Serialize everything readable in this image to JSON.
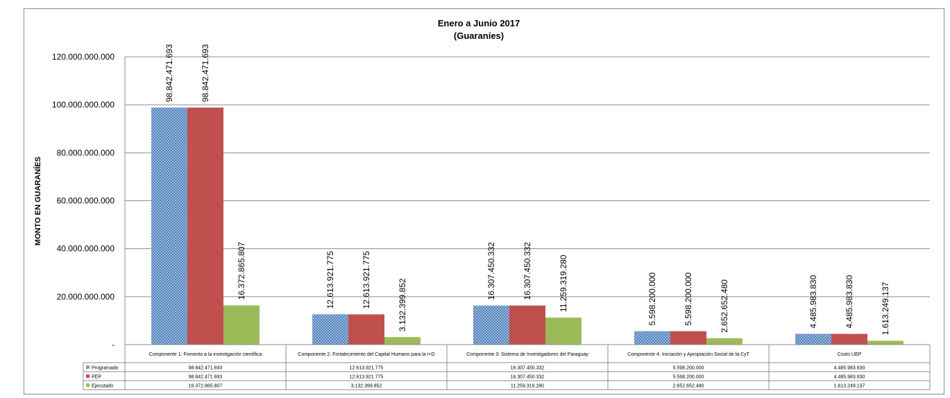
{
  "chart_data": {
    "type": "bar",
    "title": "Enero a Junio 2017",
    "subtitle": "(Guaraníes)",
    "ylabel": "MONTO EN GUARANÍES",
    "xlabel": "",
    "ylim": [
      0,
      120000000000
    ],
    "yticks": [
      0,
      20000000000,
      40000000000,
      60000000000,
      80000000000,
      100000000000,
      120000000000
    ],
    "ytick_labels": [
      "-",
      "20.000.000.000",
      "40.000.000.000",
      "60.000.000.000",
      "80.000.000.000",
      "100.000.000.000",
      "120.000.000.000"
    ],
    "grid": true,
    "categories": [
      "Componente 1: Fomento a la investigación científica",
      "Componente 2: Fortalecimiento del Capital Humano para la I+D",
      "Componente 3: Sistema de Investigadores del Paraguay",
      "Componente 4: Iniciación y Apropiación Social de la CyT",
      "Costo UEP"
    ],
    "series": [
      {
        "name": "Programado",
        "color": "#4f81bd",
        "pattern": "dots",
        "values": [
          98842471693,
          12613921775,
          16307450332,
          5598200000,
          4485983830
        ],
        "labels": [
          "98.842.471.693",
          "12.613.921.775",
          "16.307.450.332",
          "5.598.200.000",
          "4.485.983.830"
        ]
      },
      {
        "name": "PEP",
        "color": "#c0504d",
        "pattern": "solid",
        "values": [
          98842471693,
          12613921775,
          16307450332,
          5598200000,
          4485983830
        ],
        "labels": [
          "98.842.471.693",
          "12.613.921.775",
          "16.307.450.332",
          "5.598.200.000",
          "4.485.983.830"
        ]
      },
      {
        "name": "Ejecutado",
        "color": "#9bbb59",
        "pattern": "solid",
        "values": [
          16372865807,
          3132399852,
          11259319280,
          2652652480,
          1613249137
        ],
        "labels": [
          "16.372.865.807",
          "3.132.399.852",
          "11.259.319.280",
          "2.652.652.480",
          "1.613.249.137"
        ]
      }
    ],
    "legend": "data-table"
  }
}
